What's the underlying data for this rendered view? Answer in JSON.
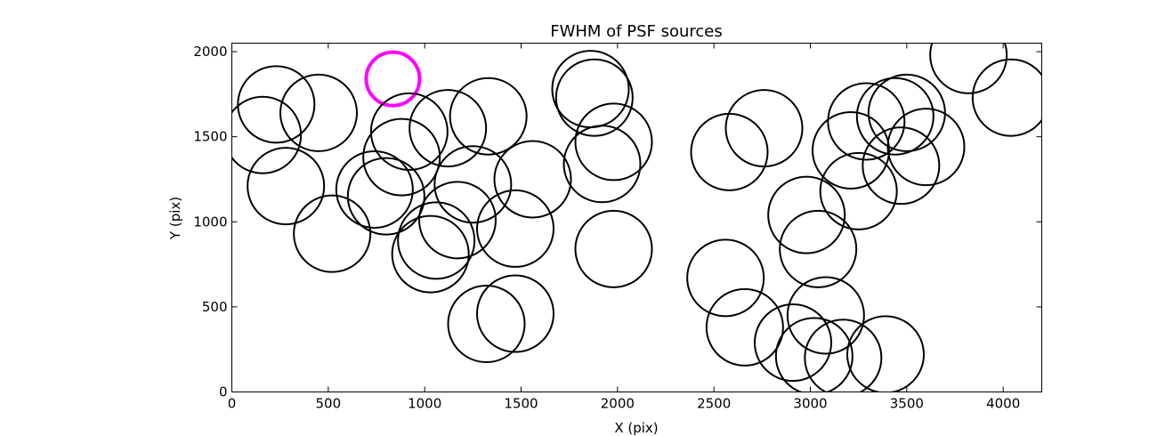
{
  "chart_data": {
    "type": "scatter",
    "title": "FWHM of PSF sources",
    "xlabel": "X (pix)",
    "ylabel": "Y (pix)",
    "xlim": [
      0,
      4200
    ],
    "ylim": [
      0,
      2050
    ],
    "x_ticks": [
      0,
      500,
      1000,
      1500,
      2000,
      2500,
      3000,
      3500,
      4000
    ],
    "y_ticks": [
      0,
      500,
      1000,
      1500,
      2000
    ],
    "grid": false,
    "marker": "open circle",
    "highlight_color": "#ff00ff",
    "default_color": "#000000",
    "points": [
      {
        "x": 160,
        "y": 1510
      },
      {
        "x": 230,
        "y": 1690
      },
      {
        "x": 280,
        "y": 1210
      },
      {
        "x": 450,
        "y": 1640
      },
      {
        "x": 520,
        "y": 930
      },
      {
        "x": 740,
        "y": 1190
      },
      {
        "x": 800,
        "y": 1150
      },
      {
        "x": 835,
        "y": 1840,
        "highlight": true
      },
      {
        "x": 880,
        "y": 1380
      },
      {
        "x": 920,
        "y": 1530
      },
      {
        "x": 1030,
        "y": 810
      },
      {
        "x": 1060,
        "y": 890
      },
      {
        "x": 1120,
        "y": 1550
      },
      {
        "x": 1170,
        "y": 1010
      },
      {
        "x": 1250,
        "y": 1220
      },
      {
        "x": 1320,
        "y": 400
      },
      {
        "x": 1330,
        "y": 1620
      },
      {
        "x": 1470,
        "y": 460
      },
      {
        "x": 1470,
        "y": 960
      },
      {
        "x": 1560,
        "y": 1250
      },
      {
        "x": 1860,
        "y": 1780
      },
      {
        "x": 1880,
        "y": 1730
      },
      {
        "x": 1920,
        "y": 1340
      },
      {
        "x": 1980,
        "y": 1470
      },
      {
        "x": 1980,
        "y": 840
      },
      {
        "x": 2560,
        "y": 670
      },
      {
        "x": 2580,
        "y": 1410
      },
      {
        "x": 2660,
        "y": 380
      },
      {
        "x": 2760,
        "y": 1550
      },
      {
        "x": 2910,
        "y": 290
      },
      {
        "x": 2980,
        "y": 1040
      },
      {
        "x": 3020,
        "y": 210
      },
      {
        "x": 3040,
        "y": 840
      },
      {
        "x": 3080,
        "y": 450
      },
      {
        "x": 3170,
        "y": 200
      },
      {
        "x": 3210,
        "y": 1420
      },
      {
        "x": 3250,
        "y": 1180
      },
      {
        "x": 3290,
        "y": 1590
      },
      {
        "x": 3390,
        "y": 220
      },
      {
        "x": 3440,
        "y": 1620
      },
      {
        "x": 3470,
        "y": 1330
      },
      {
        "x": 3500,
        "y": 1640
      },
      {
        "x": 3600,
        "y": 1440
      },
      {
        "x": 3820,
        "y": 1980
      },
      {
        "x": 4040,
        "y": 1730
      }
    ]
  }
}
